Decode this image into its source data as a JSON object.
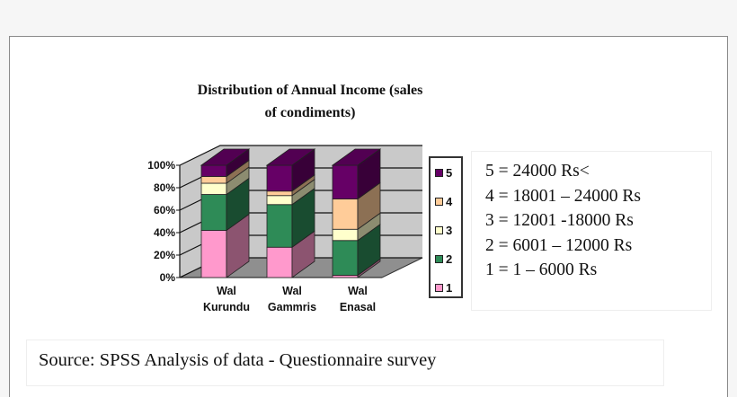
{
  "chart_data": {
    "type": "bar",
    "stacked": "percent",
    "title": "Distribution of Annual Income  (sales of condiments)",
    "title_lines": [
      "Distribution of Annual Income  (sales",
      "of condiments)"
    ],
    "categories": [
      [
        "Wal",
        "Kurundu"
      ],
      [
        "Wal",
        "Gammris"
      ],
      [
        "Wal",
        "Enasal"
      ]
    ],
    "y_ticks": [
      "0%",
      "20%",
      "40%",
      "60%",
      "80%",
      "100%"
    ],
    "ylim": [
      0,
      100
    ],
    "grid": true,
    "legend_position": "right",
    "series": [
      {
        "name": "1",
        "values": [
          42,
          27,
          2
        ]
      },
      {
        "name": "2",
        "values": [
          32,
          38,
          31
        ]
      },
      {
        "name": "3",
        "values": [
          10,
          8,
          10
        ]
      },
      {
        "name": "4",
        "values": [
          6,
          4,
          27
        ]
      },
      {
        "name": "5",
        "values": [
          10,
          23,
          30
        ]
      }
    ],
    "colors": [
      "#ff99cc",
      "#2e8b57",
      "#ffffcc",
      "#ffcc99",
      "#660066"
    ]
  },
  "income_codes": [
    "5 = 24000 Rs<",
    "4 = 18001 – 24000 Rs",
    "3 = 12001 -18000 Rs",
    "2 = 6001 – 12000 Rs",
    "1 = 1 – 6000 Rs"
  ],
  "source": "Source: SPSS Analysis of data - Questionnaire survey"
}
